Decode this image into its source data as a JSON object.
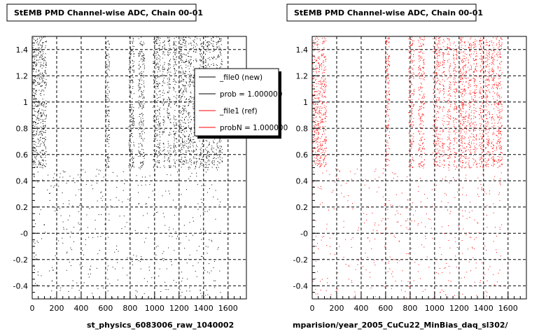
{
  "panels": [
    {
      "title": "StEMB PMD Channel-wise ADC, Chain 00-01",
      "footer": "st_physics_6083006_raw_1040002",
      "marker_color": "#000000",
      "show_legend": true
    },
    {
      "title": "StEMB PMD Channel-wise ADC, Chain 00-01",
      "footer": "mparision/year_2005_CuCu22_MinBias_daq_sl302/",
      "marker_color": "#ff0000",
      "show_legend": false
    }
  ],
  "legend": {
    "entries": [
      {
        "label": "_file0 (new)",
        "color": "#000000"
      },
      {
        "label": "prob = 1.000000",
        "color": "#000000"
      },
      {
        "label": "_file1 (ref)",
        "color": "#ff0000"
      },
      {
        "label": "probN = 1.000000",
        "color": "#ff0000"
      }
    ]
  },
  "chart_data": [
    {
      "type": "scatter",
      "title": "StEMB PMD Channel-wise ADC, Chain 00-01",
      "xlabel": "",
      "ylabel": "",
      "xlim": [
        0,
        1750
      ],
      "ylim": [
        -0.5,
        1.5
      ],
      "xticks": [
        0,
        200,
        400,
        600,
        800,
        1000,
        1200,
        1400,
        1600
      ],
      "xtick_labels": [
        "0",
        "200",
        "400",
        "600",
        "800",
        "1000",
        "1200",
        "1400",
        "1600"
      ],
      "yticks": [
        -0.4,
        -0.2,
        0,
        0.2,
        0.4,
        0.6,
        0.8,
        1,
        1.2,
        1.4
      ],
      "ytick_labels": [
        "-0.4",
        "-0.2",
        "-0",
        "0.2",
        "0.4",
        "0.6",
        "0.8",
        "1",
        "1.2",
        "1.4"
      ],
      "grid": true,
      "legend_position": "top-right",
      "series": [
        {
          "name": "_file0 (new)",
          "color": "#000000",
          "dense_bands_y": [
            0.5,
            1.5
          ],
          "dense_bands_x": [
            [
              0,
              115
            ],
            [
              595,
              630
            ],
            [
              785,
              830
            ],
            [
              865,
              915
            ],
            [
              985,
              1045
            ],
            [
              1060,
              1080
            ],
            [
              1100,
              1130
            ],
            [
              1150,
              1180
            ],
            [
              1200,
              1260
            ],
            [
              1270,
              1300
            ],
            [
              1310,
              1345
            ],
            [
              1360,
              1400
            ],
            [
              1410,
              1450
            ],
            [
              1460,
              1490
            ],
            [
              1500,
              1550
            ]
          ],
          "sparse_region_y": [
            -0.5,
            0.5
          ],
          "sparse_region_x": [
            0,
            1550
          ]
        }
      ]
    },
    {
      "type": "scatter",
      "title": "StEMB PMD Channel-wise ADC, Chain 00-01",
      "xlabel": "",
      "ylabel": "",
      "xlim": [
        0,
        1750
      ],
      "ylim": [
        -0.5,
        1.5
      ],
      "xticks": [
        0,
        200,
        400,
        600,
        800,
        1000,
        1200,
        1400,
        1600
      ],
      "xtick_labels": [
        "0",
        "200",
        "400",
        "600",
        "800",
        "1000",
        "1200",
        "1400",
        "1600"
      ],
      "yticks": [
        -0.4,
        -0.2,
        0,
        0.2,
        0.4,
        0.6,
        0.8,
        1,
        1.2,
        1.4
      ],
      "ytick_labels": [
        "-0.4",
        "-0.2",
        "-0",
        "0.2",
        "0.4",
        "0.6",
        "0.8",
        "1",
        "1.2",
        "1.4"
      ],
      "grid": true,
      "legend_position": "none",
      "series": [
        {
          "name": "_file1 (ref)",
          "color": "#ff0000",
          "dense_bands_y": [
            0.5,
            1.5
          ],
          "dense_bands_x": [
            [
              0,
              115
            ],
            [
              595,
              630
            ],
            [
              785,
              830
            ],
            [
              865,
              915
            ],
            [
              985,
              1045
            ],
            [
              1060,
              1080
            ],
            [
              1100,
              1130
            ],
            [
              1150,
              1180
            ],
            [
              1200,
              1260
            ],
            [
              1270,
              1300
            ],
            [
              1310,
              1345
            ],
            [
              1360,
              1400
            ],
            [
              1410,
              1450
            ],
            [
              1460,
              1490
            ],
            [
              1500,
              1550
            ]
          ],
          "sparse_region_y": [
            -0.5,
            0.5
          ],
          "sparse_region_x": [
            0,
            1550
          ]
        }
      ]
    }
  ]
}
